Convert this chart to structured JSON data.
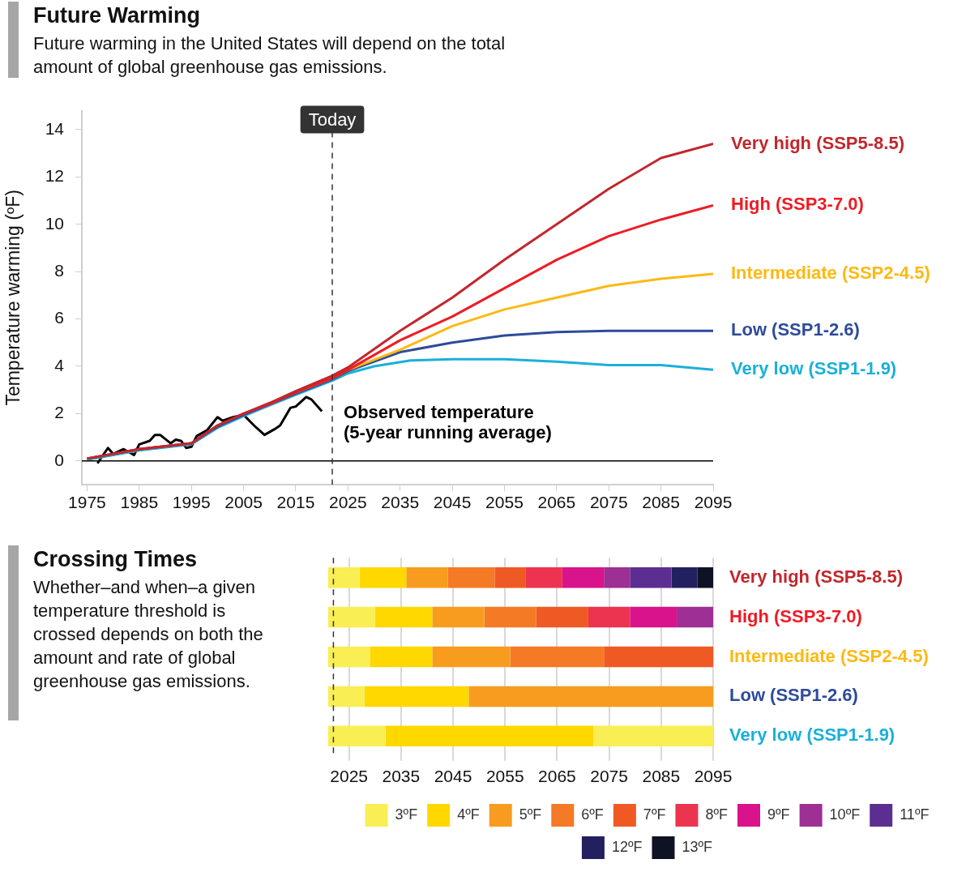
{
  "chart_data": [
    {
      "type": "line",
      "title": "Future Warming",
      "subtitle": "Future warming in the United States will depend on the total amount of global greenhouse gas emissions.",
      "ylabel": "Temperature warming (ºF)",
      "xlim": [
        1974,
        2095
      ],
      "xticks": [
        1975,
        1985,
        1995,
        2005,
        2015,
        2025,
        2035,
        2045,
        2055,
        2065,
        2075,
        2085,
        2095
      ],
      "ylim": [
        -1,
        14.8
      ],
      "yticks": [
        0,
        2,
        4,
        6,
        8,
        10,
        12,
        14
      ],
      "grid": false,
      "legend": false,
      "marker": "none",
      "line_style": "solid",
      "ref_lines": [
        {
          "axis": "y",
          "value": 0,
          "label": null,
          "color": "#000000",
          "line_style": "solid"
        },
        {
          "axis": "x",
          "value": 2022,
          "label": "Today",
          "color": "#333333",
          "line_style": "dashed"
        }
      ],
      "series": [
        {
          "name": "Very high (SSP5-8.5)",
          "color": "#c1272d",
          "x": [
            1975,
            1985,
            1995,
            2000,
            2005,
            2010,
            2015,
            2022,
            2025,
            2035,
            2045,
            2055,
            2065,
            2075,
            2085,
            2095
          ],
          "values": [
            0.1,
            0.5,
            0.75,
            1.5,
            2.0,
            2.45,
            2.95,
            3.6,
            3.95,
            5.5,
            6.9,
            8.5,
            10.0,
            11.5,
            12.8,
            13.4
          ]
        },
        {
          "name": "High (SSP3-7.0)",
          "color": "#ed1c24",
          "x": [
            1975,
            1985,
            1995,
            2000,
            2005,
            2010,
            2015,
            2022,
            2025,
            2035,
            2045,
            2055,
            2065,
            2075,
            2085,
            2095
          ],
          "values": [
            0.1,
            0.5,
            0.75,
            1.5,
            2.0,
            2.4,
            2.9,
            3.5,
            3.85,
            5.1,
            6.1,
            7.3,
            8.5,
            9.5,
            10.2,
            10.8
          ]
        },
        {
          "name": "Intermediate (SSP2-4.5)",
          "color": "#fdb913",
          "x": [
            2015,
            2022,
            2025,
            2035,
            2045,
            2055,
            2065,
            2075,
            2085,
            2095
          ],
          "values": [
            2.9,
            3.5,
            3.85,
            4.7,
            5.7,
            6.4,
            6.9,
            7.4,
            7.7,
            7.9
          ]
        },
        {
          "name": "Low (SSP1-2.6)",
          "color": "#2e4b9b",
          "x": [
            1975,
            1985,
            1995,
            2000,
            2005,
            2010,
            2015,
            2022,
            2025,
            2035,
            2045,
            2055,
            2065,
            2075,
            2085,
            2095
          ],
          "values": [
            0.1,
            0.5,
            0.75,
            1.45,
            1.95,
            2.4,
            2.85,
            3.45,
            3.8,
            4.6,
            5.0,
            5.3,
            5.45,
            5.5,
            5.5,
            5.5
          ]
        },
        {
          "name": "Very low (SSP1-1.9)",
          "color": "#1ab0d8",
          "x": [
            1975,
            1985,
            1995,
            2000,
            2005,
            2010,
            2015,
            2022,
            2025,
            2030,
            2037,
            2045,
            2055,
            2065,
            2075,
            2085,
            2095
          ],
          "values": [
            0.05,
            0.45,
            0.7,
            1.4,
            1.9,
            2.35,
            2.8,
            3.4,
            3.7,
            4.0,
            4.25,
            4.3,
            4.3,
            4.2,
            4.05,
            4.05,
            3.85
          ]
        },
        {
          "name": "Observed temperature (5-year running average)",
          "color": "#000000",
          "x": [
            1977,
            1979,
            1980,
            1982,
            1984,
            1985,
            1987,
            1988,
            1989,
            1991,
            1992,
            1993,
            1994,
            1995,
            1996,
            1998,
            2000,
            2001,
            2003,
            2005,
            2007,
            2009,
            2011,
            2012,
            2014,
            2015,
            2017,
            2018,
            2020
          ],
          "values": [
            -0.1,
            0.55,
            0.3,
            0.5,
            0.25,
            0.7,
            0.85,
            1.1,
            1.1,
            0.75,
            0.9,
            0.85,
            0.55,
            0.6,
            1.05,
            1.3,
            1.85,
            1.7,
            1.85,
            1.95,
            1.5,
            1.1,
            1.35,
            1.5,
            2.25,
            2.3,
            2.7,
            2.6,
            2.1
          ]
        }
      ]
    },
    {
      "type": "bar",
      "orientation": "horizontal",
      "title": "Crossing Times",
      "subtitle": "Whether–and when–a given temperature threshold is crossed depends on both the amount and rate of global greenhouse gas emissions.",
      "categories": [
        "Very high (SSP5-8.5)",
        "High (SSP3-7.0)",
        "Intermediate (SSP2-4.5)",
        "Low (SSP1-2.6)",
        "Very low (SSP1-1.9)"
      ],
      "xlim": [
        2021,
        2095
      ],
      "xticks": [
        2025,
        2035,
        2045,
        2055,
        2065,
        2075,
        2085,
        2095
      ],
      "grid": "x",
      "legend": "bottom",
      "ref_lines": [
        {
          "axis": "x",
          "value": 2022,
          "label": null,
          "color": "#333333",
          "line_style": "dashed"
        }
      ],
      "series": [
        {
          "name": "3ºF",
          "color": "#f9ee53",
          "base": [
            2021,
            2021,
            2021,
            2021,
            2021
          ],
          "values": [
            6,
            9,
            8,
            7,
            11
          ]
        },
        {
          "name": "4ºF",
          "color": "#ffd800",
          "base": [
            2027,
            2030,
            2029,
            2028,
            2032
          ],
          "values": [
            9,
            11,
            12,
            20,
            40
          ]
        },
        {
          "name": "5ºF",
          "color": "#f89c1f",
          "base": [
            2036,
            2041,
            2041,
            2048,
            null
          ],
          "values": [
            8,
            10,
            15,
            47,
            null
          ]
        },
        {
          "name": "6ºF",
          "color": "#f47a25",
          "base": [
            2044,
            2051,
            2056,
            null,
            null
          ],
          "values": [
            9,
            10,
            18,
            null,
            null
          ]
        },
        {
          "name": "7ºF",
          "color": "#ef5a24",
          "base": [
            2053,
            2061,
            2074,
            null,
            null
          ],
          "values": [
            6,
            10,
            21,
            null,
            null
          ]
        },
        {
          "name": "8ºF",
          "color": "#ec3450",
          "base": [
            2059,
            2071,
            null,
            null,
            null
          ],
          "values": [
            7,
            8,
            null,
            null,
            null
          ]
        },
        {
          "name": "9ºF",
          "color": "#d9138b",
          "base": [
            2066,
            2079,
            null,
            null,
            null
          ],
          "values": [
            8,
            9,
            null,
            null,
            null
          ]
        },
        {
          "name": "10ºF",
          "color": "#9d2f95",
          "base": [
            2074,
            2088,
            null,
            null,
            null
          ],
          "values": [
            5,
            7,
            null,
            null,
            null
          ]
        },
        {
          "name": "11ºF",
          "color": "#5d2e91",
          "base": [
            2079,
            null,
            null,
            null,
            null
          ],
          "values": [
            8,
            null,
            null,
            null,
            null
          ]
        },
        {
          "name": "12ºF",
          "color": "#23205f",
          "base": [
            2087,
            null,
            null,
            null,
            null
          ],
          "values": [
            5,
            null,
            null,
            null,
            null
          ]
        },
        {
          "name": "13ºF",
          "color": "#0f1225",
          "base": [
            2092,
            null,
            null,
            null,
            null
          ],
          "values": [
            3,
            null,
            null,
            null,
            null
          ]
        },
        {
          "color": "#f9ee53",
          "base": [
            null,
            null,
            null,
            null,
            2072
          ],
          "values": [
            null,
            null,
            null,
            null,
            23
          ]
        }
      ]
    }
  ]
}
